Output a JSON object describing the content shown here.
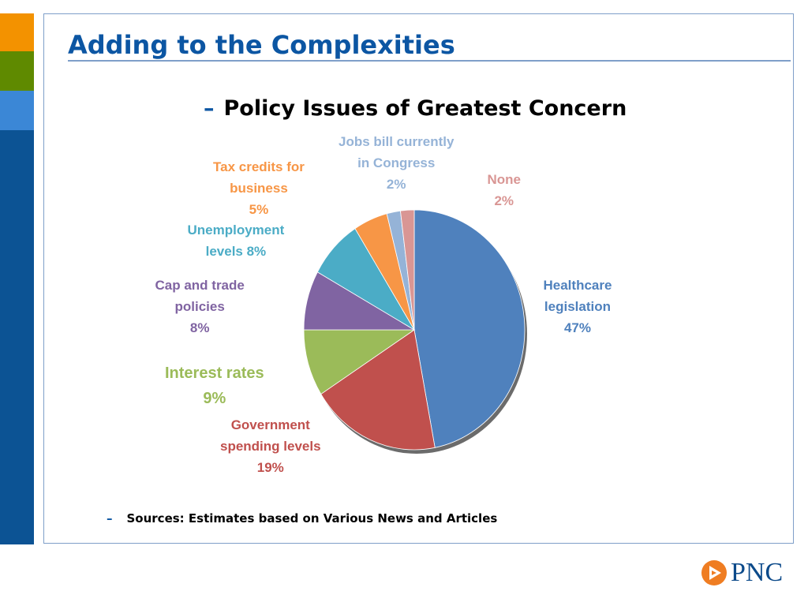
{
  "slide": {
    "title": "Adding to the Complexities",
    "subtitle_dash": "–",
    "subtitle": "Policy Issues of Greatest Concern",
    "source_dash": "–",
    "source": "Sources: Estimates based on Various News and Articles",
    "logo": "PNC"
  },
  "colors": {
    "accent_orange": "#f39200",
    "accent_green": "#5f8a00",
    "accent_light_blue": "#3b87d6",
    "accent_dark_blue": "#0c56a3"
  },
  "chart_data": {
    "type": "pie",
    "title": "Policy Issues of Greatest Concern",
    "start": "12 o'clock, clockwise",
    "slices": [
      {
        "name": "Healthcare legislation",
        "value": 47,
        "label_lines": [
          "Healthcare",
          "legislation",
          "47%"
        ],
        "color": "#4f81bd"
      },
      {
        "name": "Government spending levels",
        "value": 19,
        "label_lines": [
          "Government",
          "spending levels",
          "19%"
        ],
        "color": "#c0504d"
      },
      {
        "name": "Interest rates",
        "value": 9,
        "label_lines": [
          "Interest rates",
          "9%"
        ],
        "color": "#9bbb59"
      },
      {
        "name": "Cap and trade policies",
        "value": 8,
        "label_lines": [
          "Cap and trade",
          "policies",
          "8%"
        ],
        "color": "#8064a2"
      },
      {
        "name": "Unemployment levels",
        "value": 8,
        "label_lines": [
          "Unemployment",
          "levels 8%"
        ],
        "color": "#4bacc6"
      },
      {
        "name": "Tax credits for business",
        "value": 5,
        "label_lines": [
          "Tax credits for",
          "business",
          "5%"
        ],
        "color": "#f79646"
      },
      {
        "name": "Jobs bill currently in Congress",
        "value": 2,
        "label_lines": [
          "Jobs bill currently",
          "in Congress",
          "2%"
        ],
        "color": "#95b3d7"
      },
      {
        "name": "None",
        "value": 2,
        "label_lines": [
          "None",
          "2%"
        ],
        "color": "#d99694"
      }
    ]
  }
}
